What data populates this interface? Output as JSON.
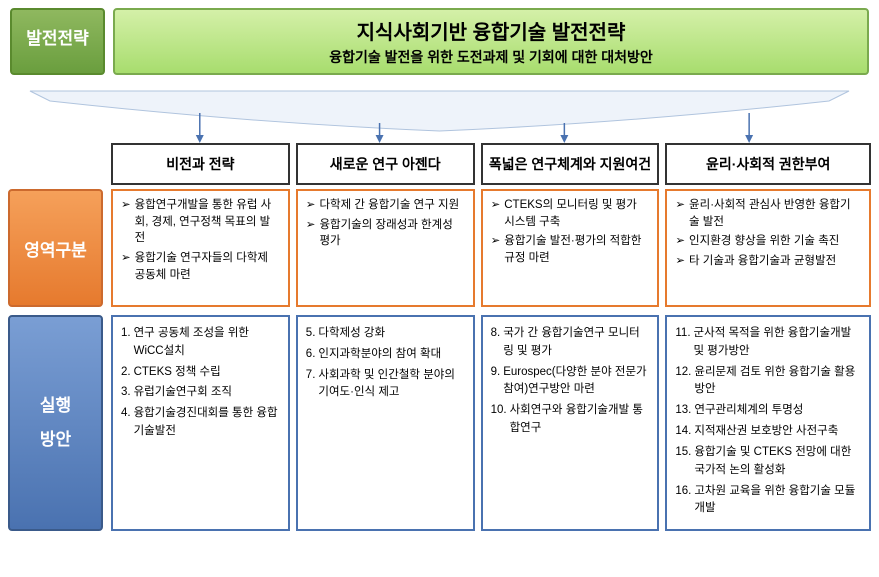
{
  "colors": {
    "green": "#6a9e3e",
    "orange": "#e67a2e",
    "blue": "#4a72b0",
    "border_dark": "#333"
  },
  "tabs": {
    "green": "발전전략",
    "orange": "영역구분",
    "blue_l1": "실행",
    "blue_l2": "방안"
  },
  "title": {
    "main": "지식사회기반 융합기술 발전전략",
    "sub": "융합기술 발전을 위한 도전과제 및 기회에 대한 대처방안"
  },
  "columns": [
    {
      "header": "비전과 전략",
      "area": [
        "융합연구개발을 통한 유럽 사회, 경제, 연구정책 목표의 발전",
        "융합기술 연구자들의 다학제 공동체 마련"
      ],
      "actions": [
        {
          "n": "1.",
          "t": "연구 공동체 조성을 위한 WiCC설치"
        },
        {
          "n": "2.",
          "t": "CTEKS 정책 수립"
        },
        {
          "n": "3.",
          "t": "유럽기술연구회 조직"
        },
        {
          "n": "4.",
          "t": "융합기술경진대회를 통한 융합기술발전"
        }
      ]
    },
    {
      "header": "새로운 연구 아젠다",
      "area": [
        "다학제 간 융합기술 연구 지원",
        "융합기술의 장래성과 한계성 평가"
      ],
      "actions": [
        {
          "n": "5.",
          "t": "다학제성 강화"
        },
        {
          "n": "6.",
          "t": "인지과학분야의 참여 확대"
        },
        {
          "n": "7.",
          "t": "사회과학 및 인간철학 분야의 기여도·인식 제고"
        }
      ]
    },
    {
      "header": "폭넓은 연구체계와 지원여건",
      "area": [
        "CTEKS의 모니터링 및 평가 시스템 구축",
        "융합기술 발전·평가의 적합한 규정 마련"
      ],
      "actions": [
        {
          "n": "8.",
          "t": "국가 간 융합기술연구 모니터링 및 평가"
        },
        {
          "n": "9.",
          "t": "Eurospec(다양한 분야 전문가 참여)연구방안 마련"
        },
        {
          "n": "10.",
          "t": "사회연구와 융합기술개발 통합연구"
        }
      ]
    },
    {
      "header": "윤리·사회적 권한부여",
      "area": [
        "윤리·사회적 관심사 반영한 융합기술 발전",
        "인지환경 향상을 위한 기술 촉진",
        "타 기술과 융합기술과 균형발전"
      ],
      "actions": [
        {
          "n": "11.",
          "t": "군사적 목적을 위한 융합기술개발 및 평가방안"
        },
        {
          "n": "12.",
          "t": "윤리문제 검토 위한 융합기술 활용방안"
        },
        {
          "n": "13.",
          "t": "연구관리체계의 투명성"
        },
        {
          "n": "14.",
          "t": "지적재산권 보호방안 사전구축"
        },
        {
          "n": "15.",
          "t": "융합기술 및 CTEKS 전망에 대한 국가적 논의 활성화"
        },
        {
          "n": "16.",
          "t": "고차원 교육을 위한 융합기술 모듈 개발"
        }
      ]
    }
  ]
}
